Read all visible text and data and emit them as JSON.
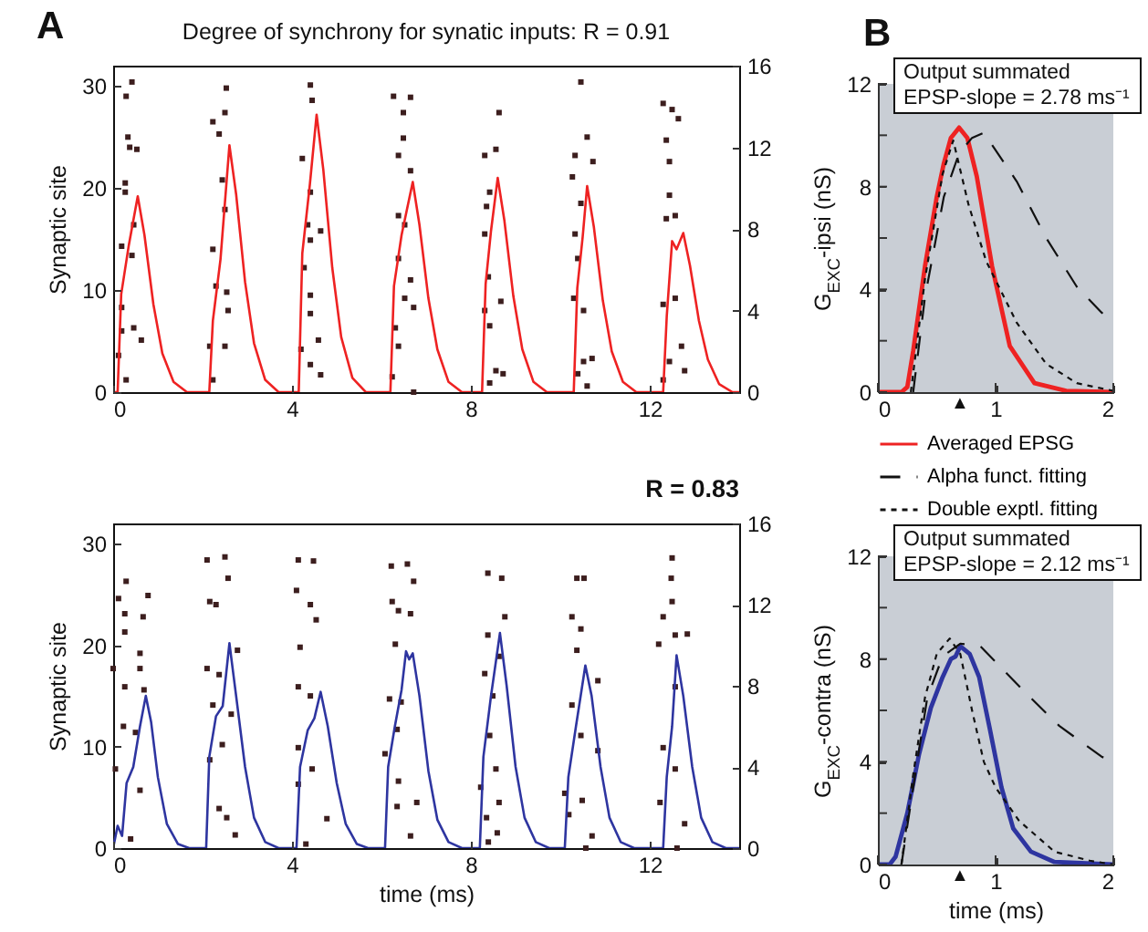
{
  "chart_data": [
    {
      "type": "line",
      "title": "Degree of synchrony for synatic inputs: R = 0.91",
      "ylabel": "Synaptic site",
      "xlim": [
        0,
        14
      ],
      "xticks": [
        0,
        4,
        8,
        12
      ],
      "ylim": [
        0,
        32
      ],
      "yticks": [
        0,
        10,
        20,
        30
      ],
      "y2lim": [
        0,
        16
      ],
      "y2ticks": [
        0,
        4,
        8,
        12,
        16
      ],
      "annotations": [
        "A"
      ],
      "series": [
        {
          "type": "scatter",
          "marker": "square",
          "color": "#3c1e1e",
          "x": [
            0.42,
            0.29,
            0.33,
            0.37,
            0.53,
            0.27,
            0.27,
            0.46,
            0.19,
            0.42,
            0.19,
            0.46,
            0.63,
            0.19,
            0.12,
            0.29,
            2.23,
            2.37,
            2.5,
            2.53,
            2.44,
            2.5,
            2.23,
            2.3,
            2.54,
            2.57,
            2.16,
            2.5,
            2.23,
            4.41,
            4.45,
            4.23,
            4.41,
            4.35,
            4.64,
            4.41,
            4.27,
            4.41,
            4.41,
            4.2,
            4.41,
            4.59,
            4.64,
            6.27,
            6.65,
            6.49,
            6.49,
            6.38,
            6.65,
            6.38,
            6.52,
            6.38,
            6.65,
            6.52,
            6.72,
            6.31,
            6.38,
            6.24,
            6.72,
            8.63,
            8.56,
            8.31,
            8.42,
            8.35,
            8.31,
            8.39,
            8.67,
            8.31,
            8.42,
            8.56,
            8.42,
            8.72,
            10.46,
            10.33,
            10.6,
            10.73,
            10.27,
            10.46,
            10.33,
            10.39,
            10.3,
            10.52,
            10.71,
            10.52,
            10.39,
            10.6,
            12.3,
            12.5,
            12.64,
            12.37,
            12.44,
            12.44,
            12.57,
            12.37,
            12.3,
            12.57,
            12.71,
            12.44,
            12.3,
            12.78
          ],
          "values": [
            30.4,
            29,
            25,
            24,
            23.8,
            20.5,
            19.6,
            16.4,
            14.3,
            13.4,
            8.3,
            6.3,
            5.1,
            6,
            3.6,
            1.2,
            26.5,
            25.3,
            27.4,
            29.8,
            20.8,
            17.9,
            14,
            10.4,
            9.8,
            8,
            4.5,
            4.5,
            1.2,
            30.1,
            28.6,
            22.9,
            19.6,
            16.4,
            15.8,
            14.9,
            12.2,
            9.5,
            7.7,
            4.2,
            2.7,
            5.1,
            1.7,
            29,
            28.9,
            27.4,
            24.9,
            23.2,
            21.7,
            17.3,
            16.4,
            13.1,
            11,
            9.2,
            8.3,
            6.3,
            4.5,
            1.5,
            0,
            27.4,
            23.8,
            23.2,
            19.6,
            18.2,
            15.5,
            11.3,
            8.9,
            8,
            6.5,
            2.1,
            0.9,
            1.8,
            30.4,
            23.2,
            25,
            22.6,
            21.1,
            18.5,
            15.5,
            13.1,
            9.2,
            8,
            3.3,
            3,
            1.8,
            0.6,
            28.3,
            27.7,
            26.8,
            24.7,
            22.6,
            19.3,
            17.3,
            17,
            8.6,
            9.2,
            4.5,
            3,
            1.2,
            2.1
          ]
        },
        {
          "type": "line",
          "axis": "y2",
          "color": "#ee2222",
          "x": [
            0,
            0.1,
            0.18,
            0.35,
            0.55,
            0.7,
            0.9,
            1.1,
            1.35,
            1.65,
            2.15,
            2.23,
            2.4,
            2.6,
            2.75,
            2.95,
            3.15,
            3.4,
            3.7,
            4.15,
            4.23,
            4.4,
            4.55,
            4.7,
            4.9,
            5.1,
            5.35,
            5.65,
            6.2,
            6.28,
            6.45,
            6.7,
            6.85,
            7.05,
            7.25,
            7.5,
            7.8,
            8.25,
            8.33,
            8.45,
            8.6,
            8.75,
            8.95,
            9.15,
            9.4,
            9.7,
            10.3,
            10.38,
            10.5,
            10.6,
            10.75,
            10.95,
            11.15,
            11.4,
            11.7,
            12.3,
            12.38,
            12.5,
            12.6,
            12.75,
            12.9,
            13.1,
            13.3,
            13.55,
            13.85,
            14
          ],
          "values": [
            0,
            0,
            4.8,
            7.2,
            9.6,
            7.7,
            4.3,
            1.9,
            0.5,
            0,
            0,
            3.5,
            6.5,
            12.1,
            9.7,
            5.4,
            2.4,
            0.6,
            0,
            0,
            6.8,
            10.2,
            13.6,
            10.9,
            6.1,
            2.7,
            0.7,
            0,
            0,
            5.2,
            7.7,
            10.3,
            8.2,
            4.6,
            2.1,
            0.5,
            0,
            0,
            5.3,
            7.9,
            10.5,
            8.4,
            4.7,
            2.1,
            0.5,
            0,
            0,
            5.1,
            7.6,
            10.1,
            8.1,
            4.5,
            2,
            0.5,
            0,
            0,
            3.7,
            7.4,
            7,
            7.8,
            6.2,
            3.5,
            1.6,
            0.4,
            0,
            0
          ]
        }
      ]
    },
    {
      "type": "line",
      "title": "R = 0.83",
      "xlabel": "time (ms)",
      "ylabel": "Synaptic site",
      "xlim": [
        0,
        14
      ],
      "xticks": [
        0,
        4,
        8,
        12
      ],
      "ylim": [
        0,
        32
      ],
      "yticks": [
        0,
        10,
        20,
        30
      ],
      "y2lim": [
        0,
        16
      ],
      "y2ticks": [
        0,
        4,
        8,
        12,
        16
      ],
      "series": [
        {
          "type": "scatter",
          "marker": "square",
          "color": "#3c1e1e",
          "x": [
            0.29,
            0.12,
            0.26,
            0.26,
            0,
            0.6,
            0.6,
            0.78,
            0.67,
            0.26,
            0.23,
            0.5,
            0.05,
            0.6,
            0.39,
            0.69,
            2.1,
            2.5,
            2.57,
            2.16,
            2.3,
            2.78,
            2.1,
            2.37,
            2.23,
            2.64,
            2.44,
            2.16,
            2.37,
            2.54,
            2.73,
            4.14,
            4.48,
            4.1,
            4.41,
            4.54,
            4.18,
            4.14,
            4.41,
            4.14,
            4.45,
            4.14,
            4.78,
            4.31,
            6.22,
            6.58,
            6.72,
            6.24,
            6.38,
            6.65,
            6.31,
            6.18,
            6.44,
            6.35,
            6.08,
            6.38,
            6.35,
            6.79,
            6.65,
            8.38,
            8.69,
            8.76,
            8.38,
            8.63,
            8.31,
            8.49,
            8.42,
            8.56,
            8.22,
            8.63,
            8.35,
            8.59,
            8.39,
            10.37,
            10.53,
            10.26,
            10.46,
            10.37,
            10.84,
            10.26,
            10.46,
            10.84,
            10.1,
            10.49,
            10.19,
            10.71,
            10.57,
            12.5,
            12.48,
            12.5,
            12.3,
            12.57,
            12.84,
            12.2,
            12.57,
            12.3,
            12.57,
            12.23,
            12.78,
            12.61
          ],
          "values": [
            26.3,
            24.6,
            23.1,
            21.3,
            17.7,
            19.2,
            17.7,
            24.9,
            22.8,
            15.9,
            12,
            11.4,
            7.8,
            5.7,
            0.9,
            15.6,
            28.4,
            28.7,
            26.6,
            24.3,
            24,
            19.5,
            17.7,
            17.1,
            14.1,
            13.2,
            10.2,
            8.7,
            3.9,
            3,
            1.3,
            28.4,
            28.3,
            25.4,
            24,
            22.5,
            19.8,
            15.9,
            15,
            9.9,
            7.8,
            6.3,
            2.9,
            0.4,
            27.8,
            28,
            26.3,
            24.3,
            23.4,
            23.1,
            20.1,
            14.7,
            14.4,
            11.7,
            9.3,
            6.6,
            4.1,
            4.5,
            1.2,
            27.1,
            26.6,
            22.8,
            21,
            18.9,
            17.2,
            15,
            11.1,
            7.8,
            6,
            4.5,
            3,
            1.5,
            0.6,
            26.6,
            26.6,
            22.8,
            21.6,
            19.5,
            16.5,
            14.1,
            11.1,
            9.6,
            5.4,
            4.7,
            3.3,
            1.2,
            0,
            28.6,
            26.6,
            24.3,
            22.8,
            21,
            21.1,
            20.1,
            15.9,
            9.9,
            7.8,
            4.5,
            2.4,
            0
          ]
        },
        {
          "type": "line",
          "axis": "y2",
          "color": "#2e35a0",
          "x": [
            0,
            0.1,
            0.2,
            0.3,
            0.45,
            0.6,
            0.73,
            0.85,
            1,
            1.2,
            1.45,
            1.7,
            2.08,
            2.15,
            2.3,
            2.45,
            2.6,
            2.75,
            2.95,
            3.15,
            3.4,
            3.7,
            4.1,
            4.18,
            4.35,
            4.5,
            4.64,
            4.8,
            5,
            5.2,
            5.45,
            5.7,
            6.08,
            6.15,
            6.3,
            6.45,
            6.55,
            6.62,
            6.7,
            6.85,
            7.05,
            7.25,
            7.5,
            7.8,
            8.2,
            8.28,
            8.45,
            8.65,
            8.8,
            9,
            9.2,
            9.45,
            9.75,
            10.1,
            10.18,
            10.35,
            10.56,
            10.7,
            10.9,
            11.1,
            11.35,
            11.65,
            12.3,
            12.38,
            12.5,
            12.6,
            12.75,
            12.95,
            13.15,
            13.4,
            13.7,
            14
          ],
          "values": [
            0,
            1.1,
            0.6,
            3.2,
            4,
            6,
            7.5,
            6.2,
            3.5,
            1.2,
            0.2,
            0,
            0,
            4.5,
            6.5,
            7,
            10.1,
            7.5,
            4,
            1.5,
            0.3,
            0,
            0,
            4,
            5.8,
            6.4,
            7.7,
            6,
            3.2,
            1.2,
            0.2,
            0,
            0,
            4,
            6,
            7.8,
            9.7,
            9.3,
            9.6,
            7.5,
            3.8,
            1.4,
            0.3,
            0,
            0,
            4.5,
            7.5,
            10.6,
            8,
            4,
            1.5,
            0.3,
            0,
            0,
            3.5,
            6,
            9,
            7.5,
            4,
            1.5,
            0.3,
            0,
            0,
            3.5,
            6,
            9.5,
            7.5,
            4,
            1.5,
            0.3,
            0,
            0
          ]
        }
      ]
    },
    {
      "type": "line",
      "ylabel": "G$_{EXC}$-ipsi (nS)",
      "xlim": [
        0,
        2
      ],
      "xticks": [
        0,
        1,
        2
      ],
      "ylim": [
        0,
        12
      ],
      "yticks": [
        0,
        {
          "value": 2,
          "label": null
        },
        4,
        {
          "value": 6,
          "label": null
        },
        8,
        {
          "value": 10,
          "label": null
        },
        12
      ],
      "legend": "bottom",
      "annotations": [
        "B",
        "Output summated",
        "EPSP-slope = 2.78 ms⁻¹",
        "▲"
      ],
      "series": [
        {
          "name": "Averaged EPSG",
          "color": "#ee2222",
          "line_style": "solid",
          "x": [
            0,
            0.2,
            0.25,
            0.3,
            0.4,
            0.5,
            0.56,
            0.62,
            0.69,
            0.76,
            0.84,
            0.97,
            1.12,
            1.33,
            1.6,
            2
          ],
          "values": [
            0,
            0,
            0.2,
            1.6,
            4.9,
            7.6,
            8.9,
            9.9,
            10.3,
            9.9,
            8.4,
            4.9,
            1.8,
            0.35,
            0.05,
            0
          ]
        },
        {
          "name": "Alpha funct. fitting",
          "color": "#111111",
          "line_style": "dashed",
          "x": [
            0.3,
            0.4,
            0.56,
            0.69,
            0.8,
            0.9,
            1.18,
            1.43,
            1.69,
            1.9,
            2
          ],
          "values": [
            0,
            3.7,
            7.6,
            9.3,
            9.9,
            10.1,
            8.2,
            6,
            4.1,
            3.1,
            2.7
          ]
        },
        {
          "name": "Double exptl. fitting",
          "color": "#111111",
          "line_style": "dotted",
          "x": [
            0.28,
            0.4,
            0.55,
            0.64,
            0.77,
            0.92,
            1.18,
            1.43,
            1.69,
            2
          ],
          "values": [
            0,
            4.4,
            8.5,
            9.8,
            7.3,
            5.1,
            2.7,
            1.1,
            0.35,
            0.05
          ]
        }
      ]
    },
    {
      "type": "line",
      "xlabel": "time (ms)",
      "ylabel": "G$_{EXC}$-contra (nS)",
      "xlim": [
        0,
        2
      ],
      "xticks": [
        0,
        1,
        2
      ],
      "ylim": [
        0,
        12
      ],
      "yticks": [
        0,
        {
          "value": 2,
          "label": null
        },
        4,
        {
          "value": 6,
          "label": null
        },
        8,
        {
          "value": 10,
          "label": null
        },
        12
      ],
      "annotations": [
        "Output summated",
        "EPSP-slope = 2.12 ms⁻¹",
        "▲"
      ],
      "series": [
        {
          "color": "#2e35a0",
          "line_style": "solid",
          "x": [
            0,
            0.1,
            0.15,
            0.25,
            0.35,
            0.45,
            0.55,
            0.62,
            0.66,
            0.7,
            0.78,
            0.86,
            0.95,
            1.05,
            1.15,
            1.3,
            1.5,
            2
          ],
          "values": [
            0,
            0,
            0.3,
            2,
            4.3,
            6.1,
            7.3,
            8,
            8.1,
            8.5,
            8.2,
            7.3,
            5.3,
            3,
            1.4,
            0.5,
            0.1,
            0
          ]
        },
        {
          "color": "#111111",
          "line_style": "dashed",
          "x": [
            0.2,
            0.3,
            0.42,
            0.55,
            0.7,
            0.87,
            1.23,
            1.54,
            1.9,
            2
          ],
          "values": [
            0,
            3,
            6.5,
            8.1,
            8.6,
            8.5,
            6.8,
            5.4,
            4.2,
            4
          ]
        },
        {
          "color": "#111111",
          "line_style": "dotted",
          "x": [
            0.2,
            0.3,
            0.4,
            0.5,
            0.61,
            0.7,
            0.8,
            0.9,
            1,
            1.2,
            1.5,
            1.8,
            2
          ],
          "values": [
            0,
            3.5,
            6.5,
            8.2,
            8.8,
            8.2,
            6,
            4,
            3,
            1.7,
            0.5,
            0.15,
            0
          ]
        }
      ]
    }
  ]
}
